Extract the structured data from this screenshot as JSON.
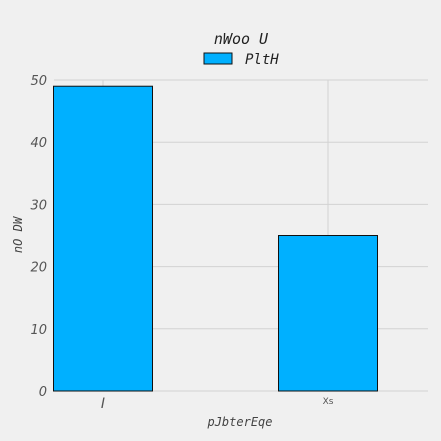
{
  "chart_data": {
    "type": "bar",
    "legend_title": "nWoo U",
    "categories": [
      "I",
      "Xs"
    ],
    "series": [
      {
        "name": "PltH",
        "values": [
          49,
          25
        ],
        "color": "#00b0ff",
        "edge_color": "#111111"
      }
    ],
    "xlabel": "pJbterEqe",
    "ylabel": "nO DW",
    "ylim": [
      0,
      50
    ],
    "yticks": [
      0,
      10,
      20,
      30,
      40,
      50
    ],
    "grid": true,
    "legend_position": "top-center",
    "background": "#f0f0f0"
  }
}
